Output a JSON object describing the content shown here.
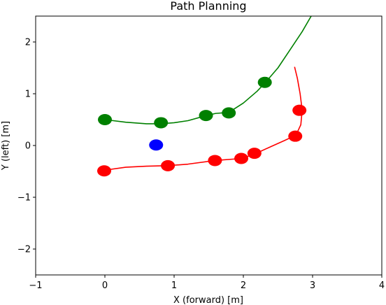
{
  "chart_data": {
    "type": "scatter",
    "title": "Path Planning",
    "xlabel": "X (forward) [m]",
    "ylabel": "Y (left) [m]",
    "xlim": [
      -1,
      4
    ],
    "ylim": [
      -2.5,
      2.5
    ],
    "xticks": [
      -1,
      0,
      1,
      2,
      3,
      4
    ],
    "xtick_labels": [
      "−1",
      "0",
      "1",
      "2",
      "3",
      "4"
    ],
    "yticks": [
      -2,
      -1,
      0,
      1,
      2
    ],
    "ytick_labels": [
      "−2",
      "−1",
      "0",
      "1",
      "2"
    ],
    "grid": false,
    "series": [
      {
        "kind": "line",
        "color": "#008000",
        "points": [
          [
            0,
            0.5
          ],
          [
            0.3,
            0.45
          ],
          [
            0.6,
            0.42
          ],
          [
            0.8,
            0.42
          ],
          [
            1.0,
            0.44
          ],
          [
            1.2,
            0.48
          ],
          [
            1.47,
            0.58
          ],
          [
            1.6,
            0.62
          ],
          [
            1.79,
            0.64
          ],
          [
            2.0,
            0.82
          ],
          [
            2.2,
            1.05
          ],
          [
            2.32,
            1.22
          ],
          [
            2.5,
            1.5
          ],
          [
            2.7,
            1.9
          ],
          [
            2.85,
            2.2
          ],
          [
            2.98,
            2.5
          ]
        ]
      },
      {
        "kind": "points",
        "color": "#008000",
        "points": [
          [
            0,
            0.5
          ],
          [
            0.81,
            0.44
          ],
          [
            1.46,
            0.58
          ],
          [
            1.79,
            0.63
          ],
          [
            2.31,
            1.22
          ]
        ]
      },
      {
        "kind": "line",
        "color": "#ff0000",
        "points": [
          [
            -0.02,
            -0.48
          ],
          [
            0.3,
            -0.42
          ],
          [
            0.6,
            -0.4
          ],
          [
            0.91,
            -0.39
          ],
          [
            1.2,
            -0.36
          ],
          [
            1.59,
            -0.29
          ],
          [
            1.98,
            -0.25
          ],
          [
            2.17,
            -0.16
          ],
          [
            2.4,
            -0.02
          ],
          [
            2.6,
            0.1
          ],
          [
            2.76,
            0.2
          ],
          [
            2.83,
            0.4
          ],
          [
            2.85,
            0.68
          ],
          [
            2.82,
            1.0
          ],
          [
            2.78,
            1.3
          ],
          [
            2.74,
            1.52
          ]
        ]
      },
      {
        "kind": "points",
        "color": "#ff0000",
        "points": [
          [
            -0.01,
            -0.49
          ],
          [
            0.91,
            -0.39
          ],
          [
            1.59,
            -0.29
          ],
          [
            1.97,
            -0.25
          ],
          [
            2.16,
            -0.15
          ],
          [
            2.75,
            0.18
          ],
          [
            2.81,
            0.68
          ]
        ]
      },
      {
        "kind": "points",
        "color": "#0000ff",
        "points": [
          [
            0.74,
            0.01
          ]
        ]
      }
    ]
  }
}
